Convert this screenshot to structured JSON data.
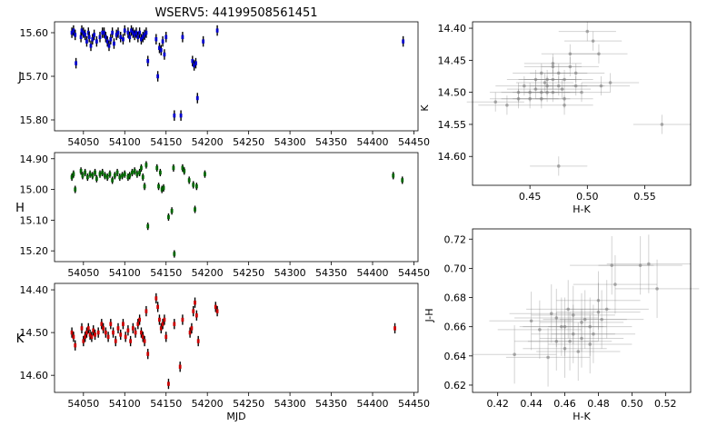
{
  "figure_title": "WSERV5: 44199508561451",
  "colors": {
    "j": "#0000cc",
    "h": "#006400",
    "k": "#cc0000",
    "errbar": "#000000",
    "color_pts": "#808080"
  },
  "chart_data": [
    {
      "id": "j_lightcurve",
      "type": "scatter",
      "ylabel": "J",
      "xlabel": "",
      "xlim": [
        54015,
        54455
      ],
      "ylim": [
        15.825,
        15.575
      ],
      "y_inverted": true,
      "xticks": [
        54050,
        54100,
        54150,
        54200,
        54250,
        54300,
        54350,
        54400,
        54450
      ],
      "yticks": [
        15.6,
        15.7,
        15.8
      ],
      "x": [
        54036,
        54038,
        54040,
        54041,
        54047,
        54048,
        54050,
        54052,
        54054,
        54056,
        54057,
        54059,
        54061,
        54063,
        54066,
        54070,
        54073,
        54075,
        54077,
        54079,
        54081,
        54083,
        54085,
        54087,
        54090,
        54092,
        54095,
        54098,
        54100,
        54104,
        54106,
        54108,
        54110,
        54112,
        54114,
        54116,
        54118,
        54120,
        54122,
        54124,
        54126,
        54128,
        54138,
        54140,
        54142,
        54144,
        54146,
        54148,
        54150,
        54160,
        54168,
        54170,
        54182,
        54184,
        54186,
        54188,
        54195,
        54212,
        54437
      ],
      "y": [
        15.6,
        15.595,
        15.605,
        15.67,
        15.61,
        15.595,
        15.6,
        15.605,
        15.62,
        15.6,
        15.61,
        15.63,
        15.615,
        15.605,
        15.62,
        15.61,
        15.6,
        15.6,
        15.61,
        15.62,
        15.63,
        15.615,
        15.6,
        15.625,
        15.605,
        15.6,
        15.61,
        15.615,
        15.595,
        15.6,
        15.61,
        15.595,
        15.6,
        15.605,
        15.6,
        15.61,
        15.6,
        15.615,
        15.61,
        15.605,
        15.6,
        15.665,
        15.615,
        15.7,
        15.635,
        15.64,
        15.62,
        15.65,
        15.61,
        15.79,
        15.79,
        15.61,
        15.665,
        15.675,
        15.67,
        15.75,
        15.62,
        15.595,
        15.62
      ],
      "yerr": 0.012
    },
    {
      "id": "h_lightcurve",
      "type": "scatter",
      "ylabel": "H",
      "xlabel": "",
      "xlim": [
        54015,
        54455
      ],
      "ylim": [
        15.235,
        14.88
      ],
      "y_inverted": true,
      "xticks": [
        54050,
        54100,
        54150,
        54200,
        54250,
        54300,
        54350,
        54400,
        54450
      ],
      "yticks": [
        14.9,
        15.0,
        15.1,
        15.2
      ],
      "x": [
        54036,
        54038,
        54040,
        54047,
        54049,
        54052,
        54055,
        54058,
        54061,
        54064,
        54066,
        54070,
        54073,
        54076,
        54079,
        54082,
        54085,
        54088,
        54091,
        54094,
        54097,
        54100,
        54104,
        54106,
        54109,
        54112,
        54115,
        54118,
        54120,
        54122,
        54124,
        54126,
        54128,
        54139,
        54141,
        54143,
        54145,
        54147,
        54153,
        54157,
        54159,
        54160,
        54170,
        54172,
        54178,
        54183,
        54185,
        54187,
        54197,
        54425,
        54436
      ],
      "y": [
        14.96,
        14.95,
        15.0,
        14.94,
        14.955,
        14.945,
        14.96,
        14.95,
        14.955,
        14.945,
        14.965,
        14.95,
        14.945,
        14.955,
        14.96,
        14.95,
        14.97,
        14.955,
        14.945,
        14.96,
        14.955,
        14.95,
        14.96,
        14.955,
        14.945,
        14.94,
        14.95,
        14.945,
        14.93,
        14.96,
        14.99,
        14.92,
        15.12,
        14.93,
        14.99,
        14.945,
        15.0,
        14.995,
        15.09,
        15.07,
        14.93,
        15.21,
        14.93,
        14.94,
        14.97,
        14.985,
        15.065,
        14.99,
        14.95,
        14.955,
        14.97
      ],
      "yerr": 0.012
    },
    {
      "id": "k_lightcurve",
      "type": "scatter",
      "ylabel": "K",
      "xlabel": "MJD",
      "xlim": [
        54015,
        54455
      ],
      "ylim": [
        14.64,
        14.385
      ],
      "y_inverted": true,
      "xticks": [
        54050,
        54100,
        54150,
        54200,
        54250,
        54300,
        54350,
        54400,
        54450
      ],
      "yticks": [
        14.4,
        14.5,
        14.6
      ],
      "x": [
        54036,
        54038,
        54040,
        54048,
        54050,
        54052,
        54054,
        54056,
        54058,
        54060,
        54062,
        54064,
        54068,
        54072,
        54074,
        54077,
        54080,
        54083,
        54086,
        54089,
        54092,
        54095,
        54098,
        54101,
        54104,
        54107,
        54110,
        54113,
        54116,
        54118,
        54120,
        54122,
        54124,
        54126,
        54128,
        54138,
        54140,
        54142,
        54144,
        54146,
        54148,
        54150,
        54153,
        54160,
        54167,
        54170,
        54179,
        54181,
        54183,
        54185,
        54187,
        54189,
        54210,
        54212,
        54427
      ],
      "y": [
        14.5,
        14.51,
        14.53,
        14.49,
        14.52,
        14.51,
        14.5,
        14.49,
        14.505,
        14.51,
        14.495,
        14.505,
        14.5,
        14.48,
        14.49,
        14.5,
        14.51,
        14.48,
        14.5,
        14.52,
        14.49,
        14.505,
        14.48,
        14.51,
        14.495,
        14.52,
        14.49,
        14.5,
        14.48,
        14.47,
        14.5,
        14.51,
        14.52,
        14.45,
        14.55,
        14.42,
        14.44,
        14.47,
        14.49,
        14.48,
        14.47,
        14.51,
        14.62,
        14.48,
        14.58,
        14.47,
        14.5,
        14.49,
        14.45,
        14.43,
        14.46,
        14.52,
        14.44,
        14.45,
        14.49
      ],
      "yerr": 0.012
    },
    {
      "id": "k_vs_hk",
      "type": "scatter",
      "ylabel": "K",
      "xlabel": "H-K",
      "xlim": [
        0.4,
        0.59
      ],
      "ylim": [
        14.645,
        14.39
      ],
      "y_inverted": true,
      "xticks": [
        0.45,
        0.5,
        0.55
      ],
      "yticks": [
        14.4,
        14.45,
        14.5,
        14.55,
        14.6
      ],
      "x": [
        0.42,
        0.43,
        0.44,
        0.44,
        0.445,
        0.45,
        0.45,
        0.455,
        0.455,
        0.46,
        0.46,
        0.46,
        0.465,
        0.465,
        0.465,
        0.47,
        0.47,
        0.47,
        0.475,
        0.475,
        0.48,
        0.48,
        0.48,
        0.485,
        0.485,
        0.49,
        0.49,
        0.495,
        0.5,
        0.505,
        0.51,
        0.512,
        0.52,
        0.475,
        0.565,
        0.463,
        0.47,
        0.478
      ],
      "y": [
        14.515,
        14.52,
        14.51,
        14.5,
        14.49,
        14.5,
        14.51,
        14.495,
        14.48,
        14.47,
        14.5,
        14.51,
        14.48,
        14.49,
        14.5,
        14.46,
        14.48,
        14.5,
        14.47,
        14.49,
        14.48,
        14.51,
        14.52,
        14.44,
        14.46,
        14.47,
        14.49,
        14.5,
        14.405,
        14.42,
        14.44,
        14.49,
        14.485,
        14.615,
        14.55,
        14.485,
        14.455,
        14.495
      ],
      "xerr": 0.025,
      "yerr": 0.015
    },
    {
      "id": "jh_vs_hk",
      "type": "scatter",
      "ylabel": "J-H",
      "xlabel": "H-K",
      "xlim": [
        0.405,
        0.535
      ],
      "ylim": [
        0.615,
        0.727
      ],
      "xticks": [
        0.42,
        0.44,
        0.46,
        0.48,
        0.5,
        0.52
      ],
      "yticks": [
        0.62,
        0.64,
        0.66,
        0.68,
        0.7,
        0.72
      ],
      "x": [
        0.43,
        0.44,
        0.445,
        0.45,
        0.452,
        0.455,
        0.458,
        0.46,
        0.462,
        0.465,
        0.468,
        0.47,
        0.472,
        0.475,
        0.477,
        0.48,
        0.482,
        0.485,
        0.488,
        0.49,
        0.46,
        0.465,
        0.47,
        0.475,
        0.48,
        0.505,
        0.51,
        0.515,
        0.455,
        0.463
      ],
      "y": [
        0.641,
        0.664,
        0.658,
        0.639,
        0.669,
        0.65,
        0.66,
        0.645,
        0.672,
        0.655,
        0.643,
        0.663,
        0.665,
        0.648,
        0.655,
        0.678,
        0.665,
        0.672,
        0.702,
        0.689,
        0.66,
        0.668,
        0.652,
        0.66,
        0.67,
        0.702,
        0.703,
        0.686,
        0.666,
        0.65
      ],
      "xerr": 0.025,
      "yerr": 0.02
    }
  ]
}
